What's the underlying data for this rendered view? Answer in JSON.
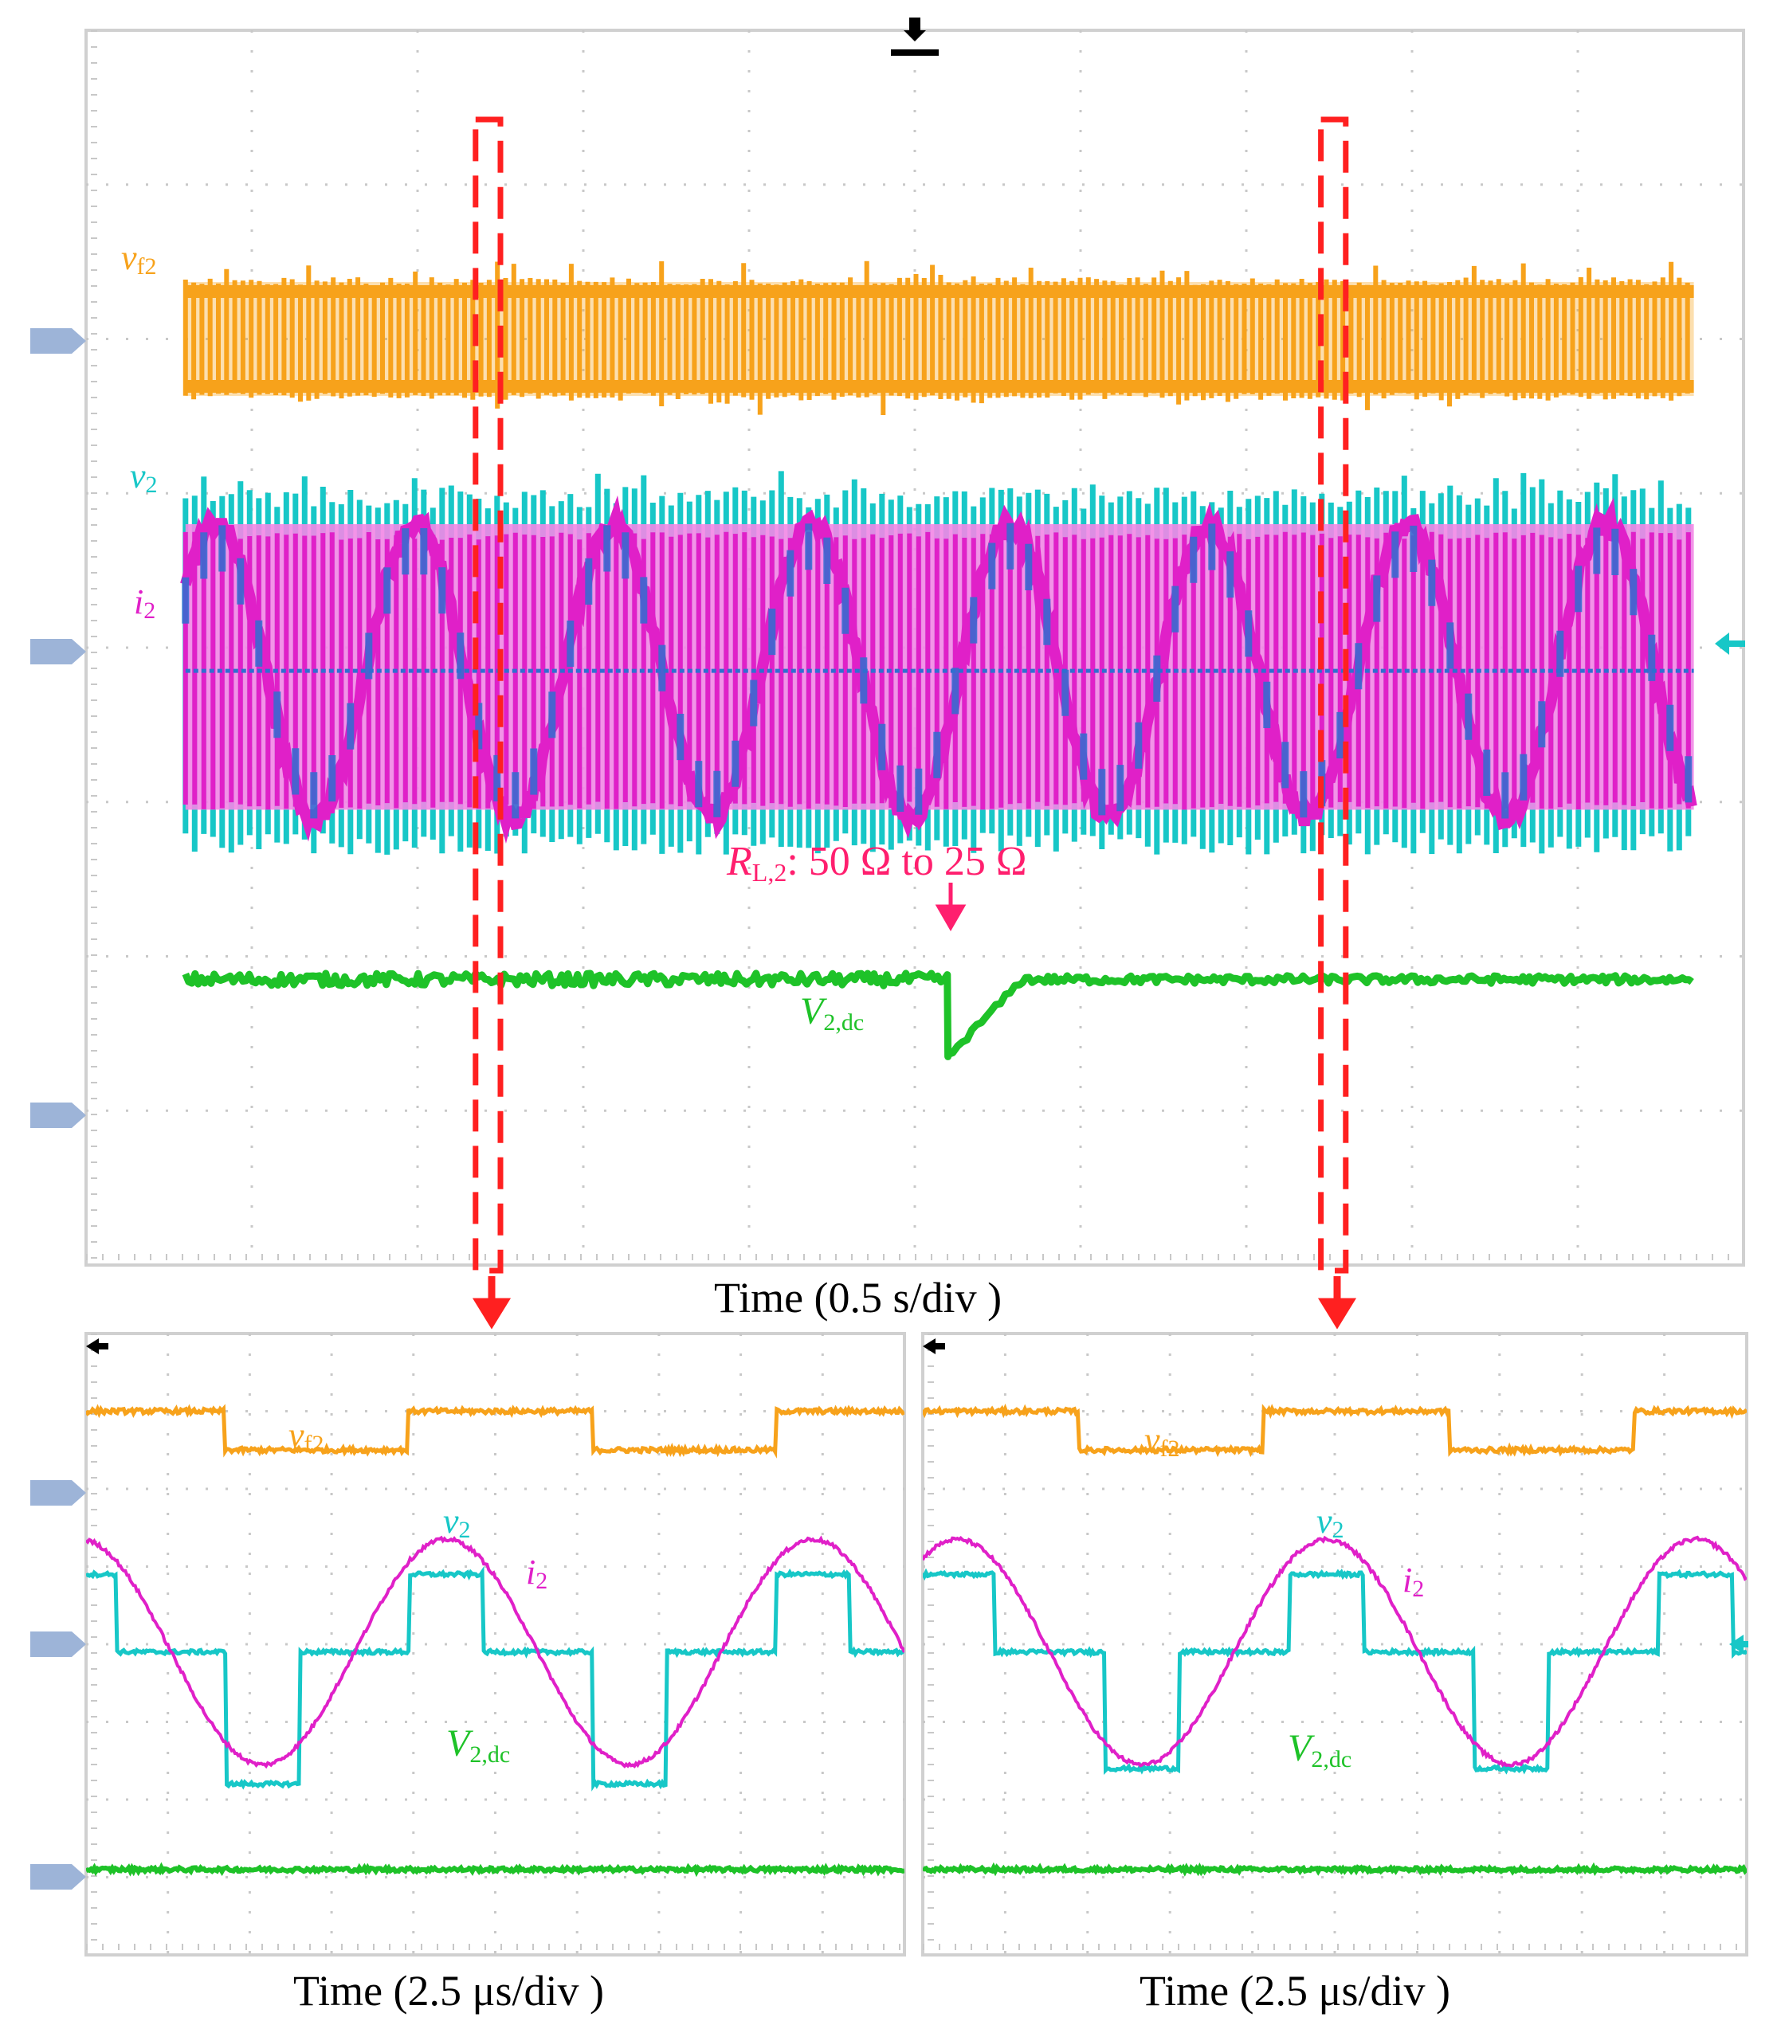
{
  "colors": {
    "vf2": "#f7a21b",
    "v2": "#17c7c7",
    "i2": "#e020c8",
    "i2_envelope": "#f287e6",
    "v2dc": "#1ec228",
    "zoom_box": "#ff2020",
    "annotation": "#ff1f6e",
    "grid": "#c8c8c8",
    "marker": "#9db4d8"
  },
  "labels": {
    "vf2": {
      "main": "v",
      "sub": "f2"
    },
    "v2": {
      "main": "v",
      "sub": "2"
    },
    "i2": {
      "main": "i",
      "sub": "2"
    },
    "v2dc": {
      "main": "V",
      "sub": "2,dc"
    },
    "load_step": {
      "main": "R",
      "sub": "L,2",
      "rest": ": 50 Ω to 25 Ω"
    }
  },
  "captions": {
    "top": "Time (0.5 s/div )",
    "bottom_left": "Time (2.5 μs/div )",
    "bottom_right": "Time (2.5 μs/div )"
  },
  "chart_data": [
    {
      "type": "line",
      "panel": "overview",
      "xlabel": "Time (0.5 s/div )",
      "divisions": {
        "x": 10,
        "y": 8
      },
      "x_unit": "div",
      "xlim": [
        0,
        10
      ],
      "ylim": [
        0,
        8
      ],
      "event": {
        "x": 5.2,
        "label": "R_L,2: 50 Ω to 25 Ω"
      },
      "zoom_windows": [
        [
          2.35,
          2.5
        ],
        [
          7.45,
          7.6
        ]
      ],
      "series": [
        {
          "name": "vf2",
          "kind": "switching",
          "x_range": [
            0.6,
            9.7
          ],
          "level_high": 6.4,
          "level_low": 5.6
        },
        {
          "name": "v2",
          "kind": "switching",
          "x_range": [
            0.6,
            9.7
          ],
          "level_high": 4.9,
          "level_low": 2.8
        },
        {
          "name": "i2",
          "kind": "sine-envelope",
          "x_range": [
            0.6,
            9.7
          ],
          "center": 3.85,
          "amplitude": 0.95
        },
        {
          "name": "V2,dc",
          "kind": "dc",
          "x_range": [
            0.6,
            9.7
          ],
          "level": 1.85,
          "dip_at": 5.2,
          "dip_to": 1.35,
          "recovery_div": 0.45
        }
      ]
    },
    {
      "type": "line",
      "panel": "zoom-left",
      "xlabel": "Time (2.5 μs/div )",
      "divisions": {
        "x": 10,
        "y": 8
      },
      "xlim": [
        0,
        10
      ],
      "ylim": [
        0,
        8
      ],
      "series": [
        {
          "name": "vf2",
          "kind": "square",
          "period_div": 4.48,
          "first_fall_div": 1.7,
          "high": 7.0,
          "low": 6.5
        },
        {
          "name": "v2",
          "kind": "three-level",
          "period_div": 4.48,
          "high": 4.9,
          "zero": 3.9,
          "low": 2.2
        },
        {
          "name": "i2",
          "kind": "sine",
          "period_div": 4.48,
          "peak_div": 4.4,
          "amplitude": 1.45,
          "center": 3.9
        },
        {
          "name": "V2,dc",
          "kind": "dc",
          "level": 1.1
        }
      ]
    },
    {
      "type": "line",
      "panel": "zoom-right",
      "xlabel": "Time (2.5 μs/div )",
      "divisions": {
        "x": 10,
        "y": 8
      },
      "xlim": [
        0,
        10
      ],
      "ylim": [
        0,
        8
      ],
      "series": [
        {
          "name": "vf2",
          "kind": "square",
          "period_div": 4.48,
          "first_fall_div": 1.9,
          "high": 7.0,
          "low": 6.5
        },
        {
          "name": "v2",
          "kind": "three-level",
          "period_div": 4.48,
          "high": 4.9,
          "zero": 3.9,
          "low": 2.4
        },
        {
          "name": "i2",
          "kind": "sine",
          "period_div": 4.48,
          "peak_div": 4.9,
          "amplitude": 1.45,
          "center": 3.9
        },
        {
          "name": "V2,dc",
          "kind": "dc",
          "level": 1.1
        }
      ]
    }
  ]
}
